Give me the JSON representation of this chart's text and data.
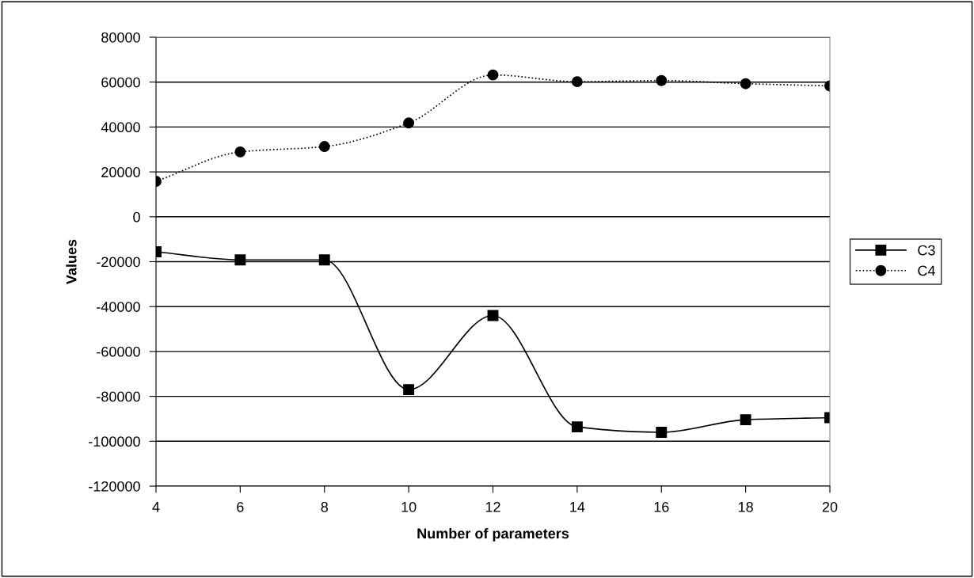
{
  "chart_data": {
    "type": "line",
    "xlabel": "Number of parameters",
    "ylabel": "Values",
    "x": [
      4,
      6,
      8,
      10,
      12,
      14,
      16,
      18,
      20
    ],
    "series": [
      {
        "name": "C3",
        "color": "#000000",
        "marker": "square",
        "line_style": "solid",
        "values": [
          -15600,
          -19200,
          -19200,
          -77000,
          -44000,
          -93600,
          -96000,
          -90400,
          -89500
        ]
      },
      {
        "name": "C4",
        "color": "#000000",
        "marker": "circle",
        "line_style": "dotted",
        "values": [
          15800,
          28900,
          31300,
          41800,
          63200,
          60200,
          60700,
          59300,
          58300
        ]
      }
    ],
    "xlim": [
      4,
      20
    ],
    "xticks": [
      4,
      6,
      8,
      10,
      12,
      14,
      16,
      18,
      20
    ],
    "ylim": [
      -120000,
      80000
    ],
    "yticks": [
      -120000,
      -100000,
      -80000,
      -60000,
      -40000,
      -20000,
      0,
      20000,
      40000,
      60000,
      80000
    ],
    "grid": "y",
    "legend": "right"
  }
}
